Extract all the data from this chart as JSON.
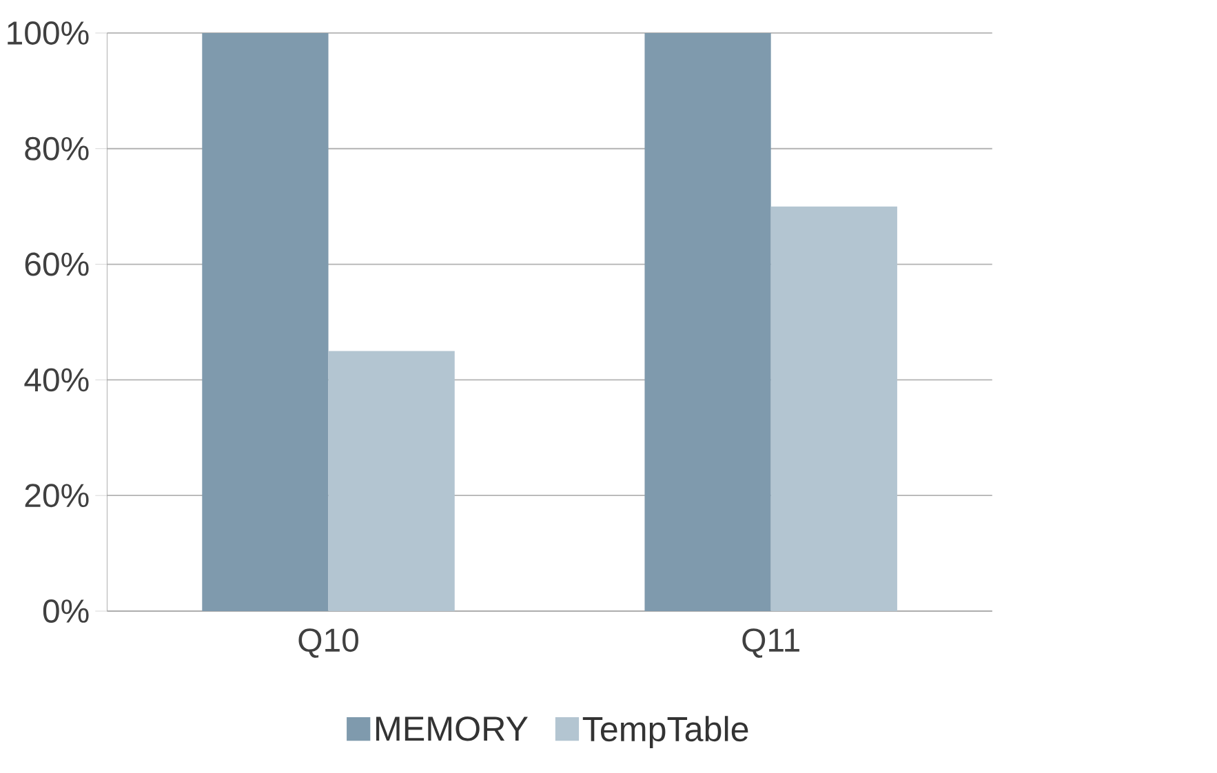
{
  "chart_data": {
    "type": "bar",
    "categories": [
      "Q10",
      "Q11"
    ],
    "series": [
      {
        "name": "MEMORY",
        "color": "#7f9aad",
        "values": [
          100,
          100
        ]
      },
      {
        "name": "TempTable",
        "color": "#b3c5d1",
        "values": [
          45,
          70
        ]
      }
    ],
    "ylim": [
      0,
      100
    ],
    "yticks": [
      {
        "value": 0,
        "label": "0%"
      },
      {
        "value": 20,
        "label": "20%"
      },
      {
        "value": 40,
        "label": "40%"
      },
      {
        "value": 60,
        "label": "60%"
      },
      {
        "value": 80,
        "label": "80%"
      },
      {
        "value": 100,
        "label": "100%"
      }
    ],
    "grid": "y",
    "legend": "bottom"
  }
}
